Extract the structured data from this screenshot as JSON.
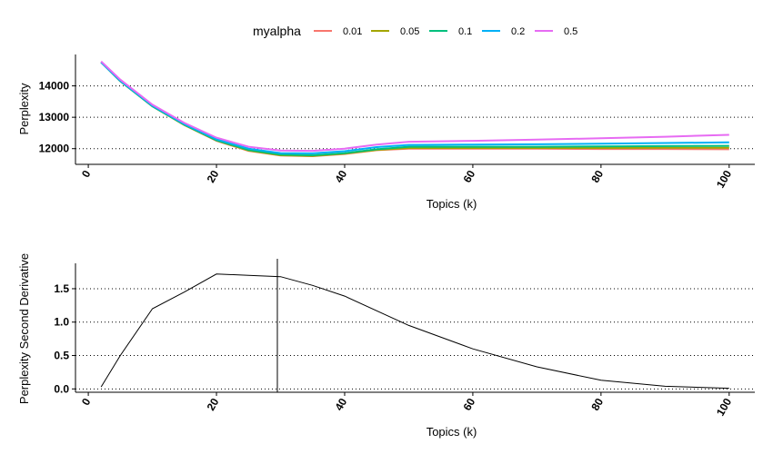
{
  "legend": {
    "title": "myalpha",
    "entries": [
      {
        "label": "0.01",
        "color": "#F8766D"
      },
      {
        "label": "0.05",
        "color": "#A3A500"
      },
      {
        "label": "0.1",
        "color": "#00BF7D"
      },
      {
        "label": "0.2",
        "color": "#00B0F6"
      },
      {
        "label": "0.5",
        "color": "#E76BF3"
      }
    ]
  },
  "chart_data": [
    {
      "type": "line",
      "xlabel": "Topics (k)",
      "ylabel": "Perplexity",
      "xlim": [
        -2,
        104
      ],
      "ylim": [
        11500,
        15000
      ],
      "xticks": [
        0,
        20,
        40,
        60,
        80,
        100
      ],
      "yticks": [
        12000,
        13000,
        14000
      ],
      "grid": "horizontal dotted",
      "legend_position": "top",
      "x": [
        2,
        5,
        10,
        15,
        20,
        25,
        30,
        35,
        40,
        45,
        50,
        60,
        70,
        80,
        90,
        100
      ],
      "series": [
        {
          "name": "0.01",
          "color": "#F8766D",
          "values": [
            14750,
            14150,
            13350,
            12750,
            12250,
            11930,
            11780,
            11760,
            11830,
            11950,
            12000,
            12000,
            12000,
            11990,
            11990,
            11980
          ]
        },
        {
          "name": "0.05",
          "color": "#A3A500",
          "values": [
            14750,
            14150,
            13350,
            12750,
            12260,
            11940,
            11790,
            11770,
            11840,
            11960,
            12020,
            12020,
            12020,
            12020,
            12030,
            12030
          ]
        },
        {
          "name": "0.1",
          "color": "#00BF7D",
          "values": [
            14750,
            14150,
            13350,
            12760,
            12270,
            11960,
            11810,
            11790,
            11860,
            11980,
            12060,
            12060,
            12060,
            12070,
            12080,
            12090
          ]
        },
        {
          "name": "0.2",
          "color": "#00B0F6",
          "values": [
            14750,
            14160,
            13370,
            12780,
            12300,
            12000,
            11860,
            11850,
            11920,
            12050,
            12120,
            12130,
            12140,
            12160,
            12180,
            12200
          ]
        },
        {
          "name": "0.5",
          "color": "#E76BF3",
          "values": [
            14780,
            14200,
            13400,
            12820,
            12350,
            12060,
            11940,
            11930,
            12000,
            12130,
            12220,
            12250,
            12290,
            12330,
            12380,
            12440
          ]
        }
      ]
    },
    {
      "type": "line",
      "xlabel": "Topics (k)",
      "ylabel": "Perplexity Second Derivative",
      "xlim": [
        -2,
        104
      ],
      "ylim": [
        -0.05,
        1.88
      ],
      "xticks": [
        0,
        20,
        40,
        60,
        80,
        100
      ],
      "yticks": [
        0.0,
        0.5,
        1.0,
        1.5
      ],
      "ytick_labels": [
        "0.0",
        "0.5",
        "1.0",
        "1.5"
      ],
      "grid": "horizontal dotted",
      "vline_x": 29.5,
      "x": [
        2,
        5,
        10,
        15,
        20,
        25,
        30,
        35,
        40,
        50,
        60,
        70,
        80,
        90,
        100
      ],
      "series": [
        {
          "color": "#000000",
          "values": [
            0.03,
            0.5,
            1.2,
            1.45,
            1.72,
            1.7,
            1.68,
            1.55,
            1.39,
            0.95,
            0.6,
            0.33,
            0.13,
            0.04,
            0.01
          ]
        }
      ]
    }
  ]
}
